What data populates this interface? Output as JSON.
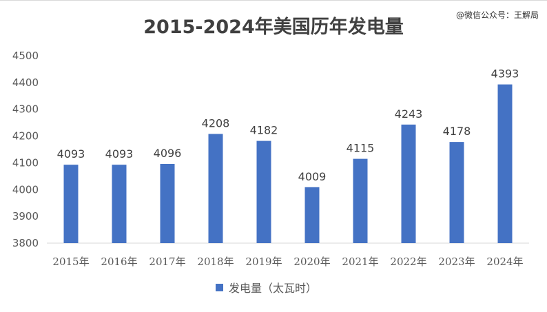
{
  "watermark": "@微信公众号：王解局",
  "chart_data": {
    "type": "bar",
    "title": "2015-2024年美国历年发电量",
    "categories": [
      "2015年",
      "2016年",
      "2017年",
      "2018年",
      "2019年",
      "2020年",
      "2021年",
      "2022年",
      "2023年",
      "2024年"
    ],
    "series": [
      {
        "name": "发电量（太瓦时）",
        "values": [
          4093,
          4093,
          4096,
          4208,
          4182,
          4009,
          4115,
          4243,
          4178,
          4393
        ],
        "color": "#4472c4"
      }
    ],
    "ylim": [
      3800,
      4500
    ],
    "yticks": [
      3800,
      3900,
      4000,
      4100,
      4200,
      4300,
      4400,
      4500
    ],
    "xlabel": "",
    "ylabel": "",
    "grid": false,
    "legend": "bottom",
    "data_labels": true
  }
}
